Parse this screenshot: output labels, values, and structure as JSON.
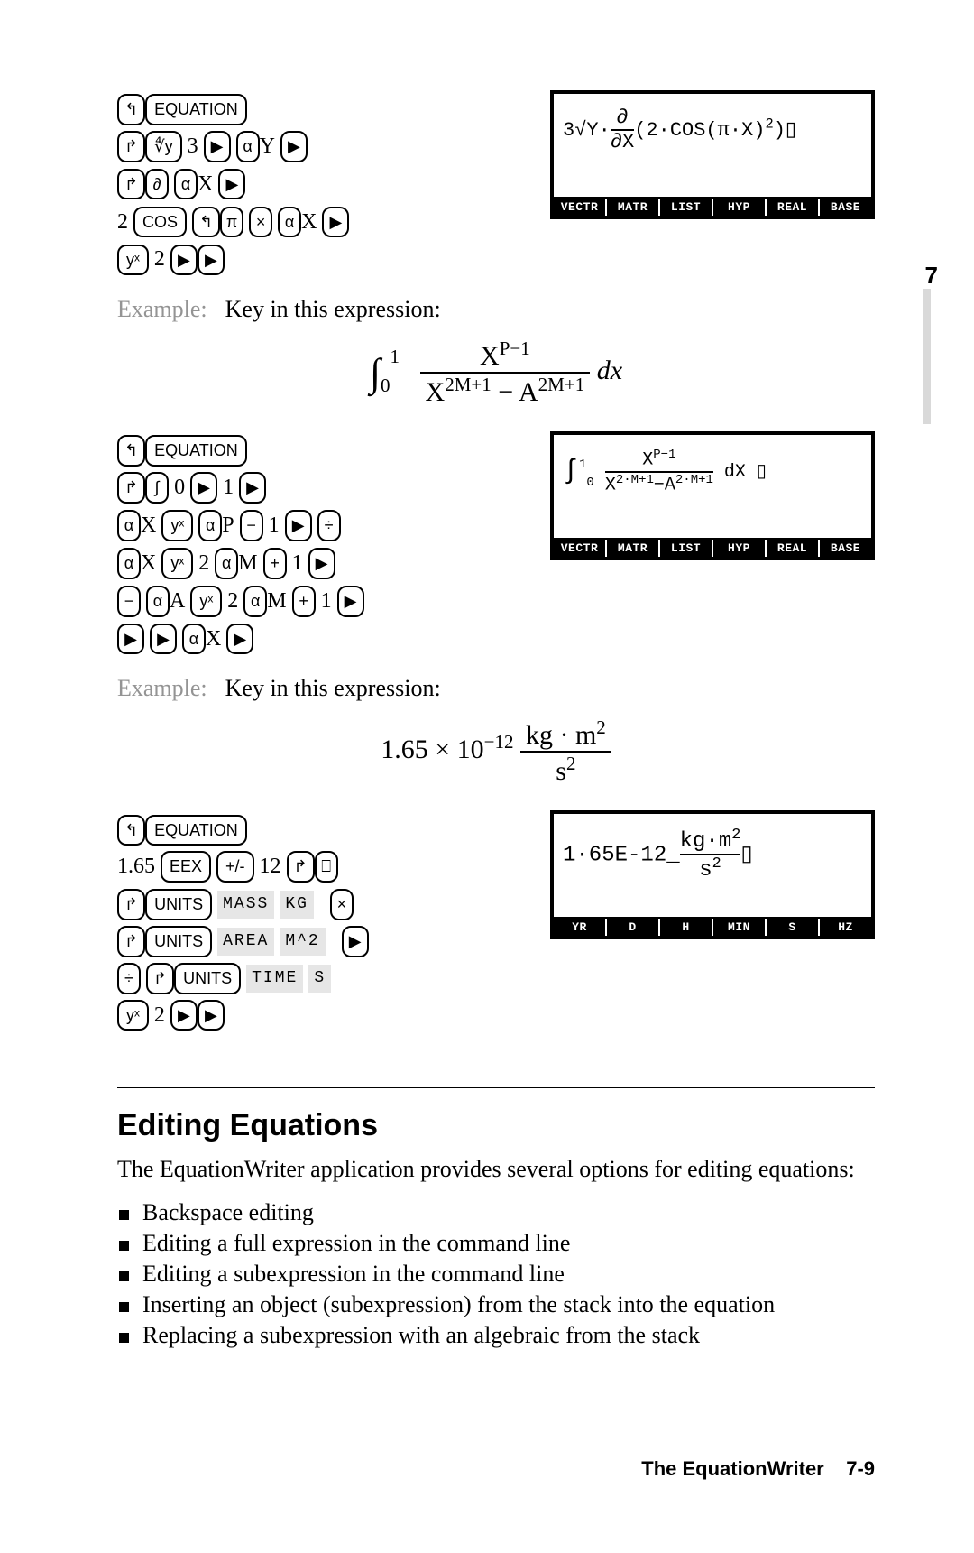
{
  "pageSideNumber": "7",
  "keys": {
    "equation": "EQUATION",
    "cos": "COS",
    "eex": "EEX",
    "pm": "+/-",
    "units": "UNITS",
    "root": "∜y",
    "partial": "∂",
    "integral": "∫",
    "yx": "yˣ",
    "left": "↰",
    "right": "↱",
    "play": "▶",
    "alpha": "α",
    "pi": "π",
    "times": "×",
    "minus": "−",
    "plus": "+",
    "divide": "÷",
    "frac": "⎕"
  },
  "literals": {
    "X": "X",
    "Y": "Y",
    "M": "M",
    "P": "P",
    "A": "A",
    "n0": "0",
    "n1": "1",
    "n2": "2",
    "n3": "3",
    "v1_65": "1.65",
    "v12": "12"
  },
  "menuLabels": {
    "mass": "MASS",
    "kg": "KG",
    "area": "AREA",
    "m2": "M^2",
    "time": "TIME",
    "s": "S"
  },
  "calcMenuA": [
    "VECTR",
    "MATR",
    "LIST",
    "HYP",
    "REAL",
    "BASE"
  ],
  "calcMenuB": [
    "VECTR",
    "MATR",
    "LIST",
    "HYP",
    "REAL",
    "BASE"
  ],
  "calcMenuC": [
    "YR",
    "D",
    "H",
    "MIN",
    "S",
    "HZ"
  ],
  "calc1": {
    "prefix": "3√Y·",
    "fracTop": "∂",
    "fracBot": "∂X",
    "paren": "(2·COS(π·X)",
    "sup": "2",
    "close": ")▯"
  },
  "calc2": {
    "intTop": "1",
    "intBot": "0",
    "numL": "X",
    "numSup": "P−1",
    "denL": "X",
    "denSup1": "2·M+1",
    "denMid": "−A",
    "denSup2": "2·M+1",
    "tail": " dX ▯"
  },
  "calc3": {
    "lead": "1·65E-12_",
    "numL": "kg·m",
    "numSup": "2",
    "den": "s",
    "denSup": "2",
    "tail": "▯"
  },
  "exampleLabel": "Example:",
  "exampleText": "Key in this expression:",
  "math1": {
    "int": "∫",
    "lo": "0",
    "hi": "1",
    "numBase": "X",
    "numSup": "P−1",
    "denL": "X",
    "denSup1": "2M+1",
    "denMid": " − A",
    "denSup2": "2M+1",
    "tail": " dx"
  },
  "math2": {
    "lead": "1.65 × 10",
    "exp": "−12",
    "num": "kg · m",
    "numSup": "2",
    "den": "s",
    "denSup": "2"
  },
  "sectionTitle": "Editing Equations",
  "sectionIntro": "The EquationWriter application provides several options for editing equations:",
  "options": [
    "Backspace editing",
    "Editing a full expression in the command line",
    "Editing a subexpression in the command line",
    "Inserting an object (subexpression) from the stack into the equation",
    "Replacing a subexpression with an algebraic from the stack"
  ],
  "footerTitle": "The EquationWriter",
  "footerPage": "7-9",
  "colors": {
    "text": "#000000",
    "bg": "#ffffff",
    "greyText": "#949494",
    "greyFill": "#e6e6e6",
    "sideBar": "#d9d9d9"
  }
}
